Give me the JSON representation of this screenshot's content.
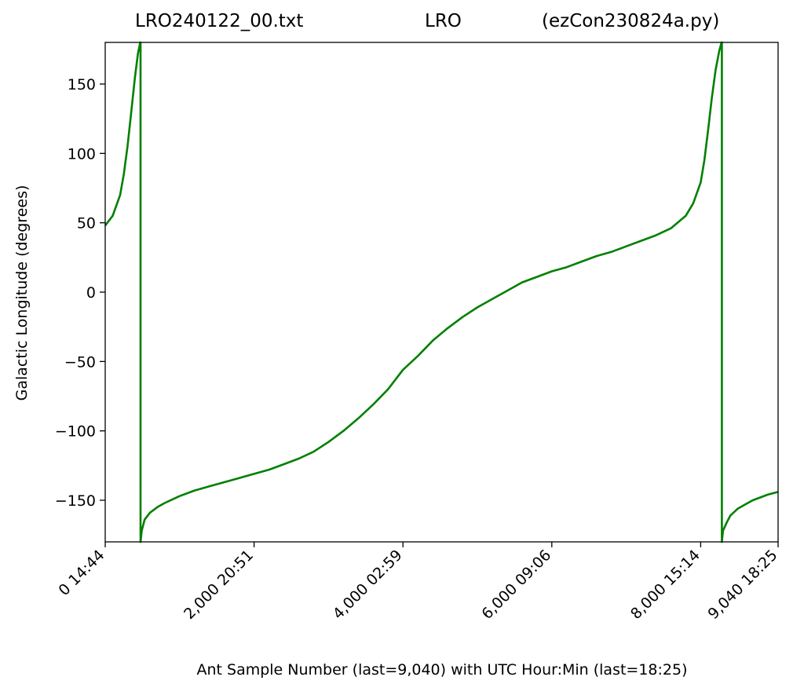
{
  "title": {
    "left": "LRO240122_00.txt",
    "center": "LRO",
    "right": "(ezCon230824a.py)"
  },
  "chart_data": {
    "type": "line",
    "title": "LRO240122_00.txt LRO (ezCon230824a.py)",
    "xlabel": "Ant Sample Number (last=9,040) with UTC Hour:Min (last=18:25)",
    "ylabel": "Galactic Longitude (degrees)",
    "xlim": [
      0,
      9040
    ],
    "ylim": [
      -180,
      180
    ],
    "grid": false,
    "line_color": "#008000",
    "x_ticks": [
      {
        "value": 0,
        "label": "0  14:44"
      },
      {
        "value": 2000,
        "label": "2,000  20:51"
      },
      {
        "value": 4000,
        "label": "4,000  02:59"
      },
      {
        "value": 6000,
        "label": "6,000  09:06"
      },
      {
        "value": 8000,
        "label": "8,000  15:14"
      },
      {
        "value": 9040,
        "label": "9,040  18:25"
      }
    ],
    "y_ticks": [
      {
        "value": 150,
        "label": "150"
      },
      {
        "value": 100,
        "label": "100"
      },
      {
        "value": 50,
        "label": "50"
      },
      {
        "value": 0,
        "label": "0"
      },
      {
        "value": -50,
        "label": "−50"
      },
      {
        "value": -100,
        "label": "−100"
      },
      {
        "value": -150,
        "label": "−150"
      }
    ],
    "series": [
      {
        "x": [
          0,
          100,
          200,
          250,
          300,
          350,
          400,
          440,
          470,
          475,
          475,
          490,
          530,
          600,
          700,
          800,
          1000,
          1200,
          1400,
          1600,
          1800,
          2000,
          2200,
          2400,
          2600,
          2800,
          3000,
          3200,
          3400,
          3600,
          3800,
          4000,
          4200,
          4400,
          4600,
          4800,
          5000,
          5200,
          5400,
          5600,
          5800,
          6000,
          6200,
          6400,
          6600,
          6800,
          7000,
          7200,
          7400,
          7600,
          7800,
          7900,
          8000,
          8050,
          8100,
          8150,
          8200,
          8250,
          8280,
          8285,
          8285,
          8300,
          8350,
          8400,
          8500,
          8600,
          8700,
          8800,
          8900,
          9040
        ],
        "y": [
          48,
          55,
          70,
          85,
          105,
          130,
          155,
          172,
          180,
          180,
          -180,
          -172,
          -164,
          -159,
          -155,
          -152,
          -147,
          -143,
          -140,
          -137,
          -134,
          -131,
          -128,
          -124,
          -120,
          -115,
          -108,
          -100,
          -91,
          -81,
          -70,
          -56,
          -46,
          -35,
          -26,
          -18,
          -11,
          -5,
          1,
          7,
          11,
          15,
          18,
          22,
          26,
          29,
          33,
          37,
          41,
          46,
          55,
          64,
          79,
          95,
          117,
          140,
          160,
          174,
          180,
          180,
          -180,
          -172,
          -166,
          -161,
          -156,
          -153,
          -150,
          -148,
          -146,
          -144
        ]
      }
    ]
  }
}
